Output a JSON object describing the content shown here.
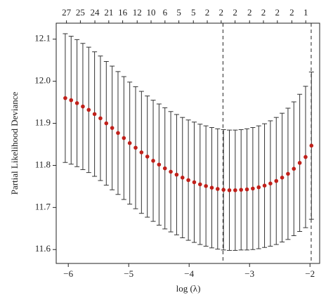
{
  "chart_data": {
    "type": "errorbar",
    "x_label": "log (λ)",
    "y_label": "Partial Likelihood Deviance",
    "x": [
      -6.05,
      -5.953,
      -5.856,
      -5.759,
      -5.662,
      -5.565,
      -5.468,
      -5.371,
      -5.274,
      -5.177,
      -5.08,
      -4.983,
      -4.886,
      -4.789,
      -4.692,
      -4.595,
      -4.498,
      -4.401,
      -4.304,
      -4.207,
      -4.11,
      -4.013,
      -3.916,
      -3.819,
      -3.722,
      -3.625,
      -3.528,
      -3.431,
      -3.334,
      -3.237,
      -3.14,
      -3.043,
      -2.946,
      -2.849,
      -2.752,
      -2.655,
      -2.558,
      -2.461,
      -2.364,
      -2.267,
      -2.17,
      -2.073,
      -1.976
    ],
    "series": [
      {
        "color": "#c0201a",
        "values": [
          11.96,
          11.955,
          11.948,
          11.94,
          11.932,
          11.922,
          11.912,
          11.9,
          11.889,
          11.877,
          11.865,
          11.853,
          11.842,
          11.831,
          11.821,
          11.811,
          11.802,
          11.793,
          11.785,
          11.778,
          11.771,
          11.765,
          11.76,
          11.755,
          11.751,
          11.747,
          11.744,
          11.742,
          11.741,
          11.741,
          11.742,
          11.743,
          11.745,
          11.748,
          11.752,
          11.757,
          11.763,
          11.771,
          11.78,
          11.792,
          11.806,
          11.82,
          11.847
        ],
        "errors": [
          0.153,
          0.152,
          0.151,
          0.15,
          0.149,
          0.148,
          0.148,
          0.147,
          0.147,
          0.146,
          0.146,
          0.145,
          0.145,
          0.145,
          0.144,
          0.144,
          0.144,
          0.144,
          0.143,
          0.143,
          0.143,
          0.143,
          0.143,
          0.143,
          0.143,
          0.143,
          0.143,
          0.143,
          0.143,
          0.143,
          0.143,
          0.144,
          0.145,
          0.146,
          0.147,
          0.149,
          0.151,
          0.153,
          0.156,
          0.159,
          0.163,
          0.168,
          0.175
        ]
      }
    ],
    "bar_color": "#333333",
    "xlim": [
      -6.2,
      -1.84
    ],
    "ylim": [
      11.567,
      12.138
    ],
    "xticks": [
      {
        "value": -6,
        "label": "−6"
      },
      {
        "value": -5,
        "label": "−5"
      },
      {
        "value": -4,
        "label": "−4"
      },
      {
        "value": -3,
        "label": "−3"
      },
      {
        "value": -2,
        "label": "−2"
      }
    ],
    "yticks": [
      11.6,
      11.7,
      11.8,
      11.9,
      {
        "value": 12,
        "label": "12.0"
      },
      12.1
    ],
    "top_ticks": [
      -6.03,
      -5.8,
      -5.56,
      -5.33,
      -5.1,
      -4.86,
      -4.63,
      -4.4,
      -4.17,
      -3.93,
      -3.7,
      -3.47,
      -3.24,
      -3.0,
      -2.77,
      -2.54,
      -2.3,
      -2.07
    ],
    "top_labels": [
      27,
      25,
      24,
      21,
      16,
      12,
      10,
      6,
      5,
      5,
      2,
      2,
      2,
      2,
      2,
      2,
      2,
      1
    ],
    "vlines": [
      -3.44,
      -1.98
    ]
  }
}
